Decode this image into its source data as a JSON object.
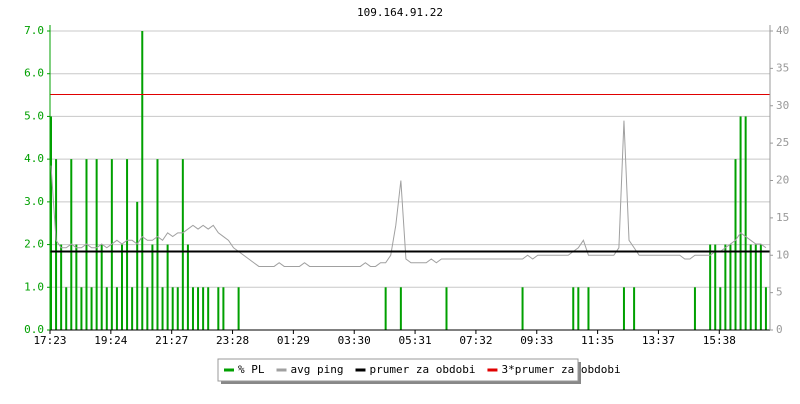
{
  "chart_data": {
    "type": "pl-ping",
    "title": "109.164.91.22",
    "categories": [
      "17:23",
      null,
      null,
      null,
      null,
      null,
      null,
      null,
      null,
      null,
      null,
      null,
      "19:24",
      null,
      null,
      null,
      null,
      null,
      null,
      null,
      null,
      null,
      null,
      null,
      "21:27",
      null,
      null,
      null,
      null,
      null,
      null,
      null,
      null,
      null,
      null,
      null,
      "23:28",
      null,
      null,
      null,
      null,
      null,
      null,
      null,
      null,
      null,
      null,
      null,
      "01:29",
      null,
      null,
      null,
      null,
      null,
      null,
      null,
      null,
      null,
      null,
      null,
      "03:30",
      null,
      null,
      null,
      null,
      null,
      null,
      null,
      null,
      null,
      null,
      null,
      "05:31",
      null,
      null,
      null,
      null,
      null,
      null,
      null,
      null,
      null,
      null,
      null,
      "07:32",
      null,
      null,
      null,
      null,
      null,
      null,
      null,
      null,
      null,
      null,
      null,
      "09:33",
      null,
      null,
      null,
      null,
      null,
      null,
      null,
      null,
      null,
      null,
      null,
      "11:35",
      null,
      null,
      null,
      null,
      null,
      null,
      null,
      null,
      null,
      null,
      null,
      "13:37",
      null,
      null,
      null,
      null,
      null,
      null,
      null,
      null,
      null,
      null,
      null,
      "15:38",
      null,
      null,
      null,
      null,
      null,
      null,
      null,
      null,
      null
    ],
    "series": [
      {
        "name": "% PL",
        "color": "#00a000",
        "values": [
          5,
          4,
          2,
          1,
          4,
          2,
          1,
          4,
          1,
          4,
          2,
          1,
          4,
          1,
          2,
          4,
          1,
          3,
          7,
          1,
          2,
          4,
          1,
          2,
          1,
          1,
          4,
          2,
          1,
          1,
          1,
          1,
          0,
          1,
          1,
          0,
          0,
          1,
          0,
          0,
          0,
          0,
          0,
          0,
          0,
          0,
          0,
          0,
          0,
          0,
          0,
          0,
          0,
          0,
          0,
          0,
          0,
          0,
          0,
          0,
          0,
          0,
          0,
          0,
          0,
          0,
          1,
          0,
          0,
          1,
          0,
          0,
          0,
          0,
          0,
          0,
          0,
          0,
          1,
          0,
          0,
          0,
          0,
          0,
          0,
          0,
          0,
          0,
          0,
          0,
          0,
          0,
          0,
          1,
          0,
          0,
          0,
          0,
          0,
          0,
          0,
          0,
          0,
          1,
          1,
          0,
          1,
          0,
          0,
          0,
          0,
          0,
          0,
          1,
          0,
          1,
          0,
          0,
          0,
          0,
          0,
          0,
          0,
          0,
          0,
          0,
          0,
          1,
          0,
          0,
          2,
          2,
          1,
          2,
          2,
          4,
          5,
          5,
          2,
          2,
          2,
          1
        ]
      },
      {
        "name": "avg ping",
        "color": "#a0a0a0",
        "axis": "y2",
        "values": [
          22,
          12,
          11,
          11,
          11.5,
          11,
          11,
          11.5,
          11,
          11,
          11.5,
          11,
          11.5,
          12,
          11.5,
          12,
          12,
          11.5,
          12.5,
          12,
          12,
          12.5,
          12,
          13,
          12.5,
          13,
          13,
          13.5,
          14,
          13.5,
          14,
          13.5,
          14,
          13,
          12.5,
          12,
          11,
          10.5,
          10,
          9.5,
          9,
          8.5,
          8.5,
          8.5,
          8.5,
          9,
          8.5,
          8.5,
          8.5,
          8.5,
          9,
          8.5,
          8.5,
          8.5,
          8.5,
          8.5,
          8.5,
          8.5,
          8.5,
          8.5,
          8.5,
          8.5,
          9,
          8.5,
          8.5,
          9,
          9,
          10,
          14,
          20,
          9.5,
          9,
          9,
          9,
          9,
          9.5,
          9,
          9.5,
          9.5,
          9.5,
          9.5,
          9.5,
          9.5,
          9.5,
          9.5,
          9.5,
          9.5,
          9.5,
          9.5,
          9.5,
          9.5,
          9.5,
          9.5,
          9.5,
          10,
          9.5,
          10,
          10,
          10,
          10,
          10,
          10,
          10,
          10.5,
          11,
          12,
          10,
          10,
          10,
          10,
          10,
          10,
          11,
          28,
          12,
          11,
          10,
          10,
          10,
          10,
          10,
          10,
          10,
          10,
          10,
          9.5,
          9.5,
          10,
          10,
          10,
          10,
          10.5,
          10.5,
          11,
          11.5,
          12,
          13,
          12.5,
          12,
          11.5,
          11.5,
          11
        ]
      },
      {
        "name": "prumer za obdobi",
        "color": "#000000",
        "axis": "y2",
        "value": 10.5
      },
      {
        "name": "3*prumer za obdobi",
        "color": "#e00000",
        "axis": "y2",
        "value": 31.5
      }
    ],
    "ylim": [
      0,
      7
    ],
    "yticks": [
      {
        "value": 0,
        "label": "0.0"
      },
      {
        "value": 1,
        "label": "1.0"
      },
      {
        "value": 2,
        "label": "2.0"
      },
      {
        "value": 3,
        "label": "3.0"
      },
      {
        "value": 4,
        "label": "4.0"
      },
      {
        "value": 5,
        "label": "5.0"
      },
      {
        "value": 6,
        "label": "6.0"
      },
      {
        "value": 7,
        "label": "7.0"
      }
    ],
    "y2lim": [
      0,
      40
    ],
    "y2ticks": [
      0,
      5,
      10,
      15,
      20,
      25,
      30,
      35,
      40
    ],
    "grid": true
  }
}
